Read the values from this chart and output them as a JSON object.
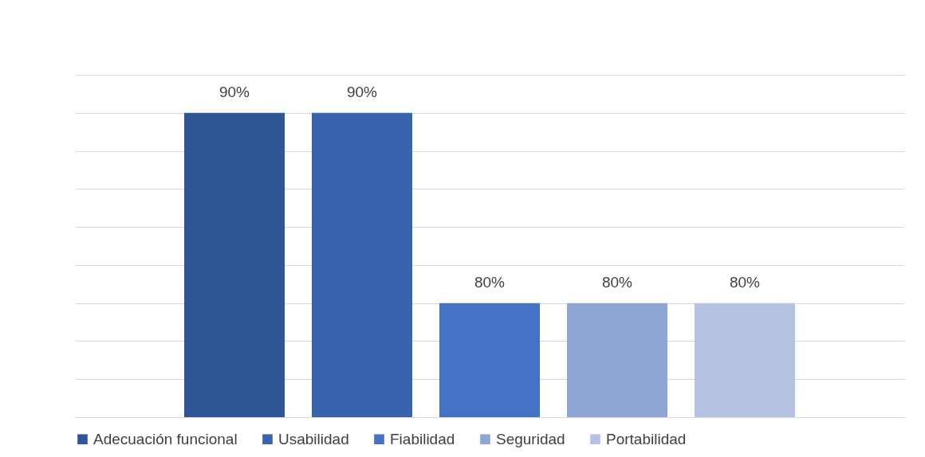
{
  "chart_data": {
    "type": "bar",
    "categories": [
      null
    ],
    "series": [
      {
        "name": "Adecuación funcional",
        "color": "#2f5597",
        "values": [
          90
        ],
        "value_labels": [
          "90%"
        ]
      },
      {
        "name": "Usabilidad",
        "color": "#3a63ad",
        "values": [
          90
        ],
        "value_labels": [
          "90%"
        ]
      },
      {
        "name": "Fiabilidad",
        "color": "#4472c4",
        "values": [
          80
        ],
        "value_labels": [
          "80%"
        ]
      },
      {
        "name": "Seguridad",
        "color": "#8fa5d5",
        "values": [
          80
        ],
        "value_labels": [
          "80%"
        ]
      },
      {
        "name": "Portabilidad",
        "color": "#b6c2e3",
        "values": [
          80
        ],
        "value_labels": [
          "80%"
        ]
      }
    ],
    "ylim": [
      74,
      92
    ],
    "yticks": [
      {
        "value": 74,
        "label": null
      },
      {
        "value": 76,
        "label": null
      },
      {
        "value": 78,
        "label": null
      },
      {
        "value": 80,
        "label": null
      },
      {
        "value": 82,
        "label": null
      },
      {
        "value": 84,
        "label": null
      },
      {
        "value": 86,
        "label": null
      },
      {
        "value": 88,
        "label": null
      },
      {
        "value": 90,
        "label": null
      },
      {
        "value": 92,
        "label": null
      }
    ],
    "grid": "y",
    "legend": "bottom",
    "tick_labels": false
  }
}
